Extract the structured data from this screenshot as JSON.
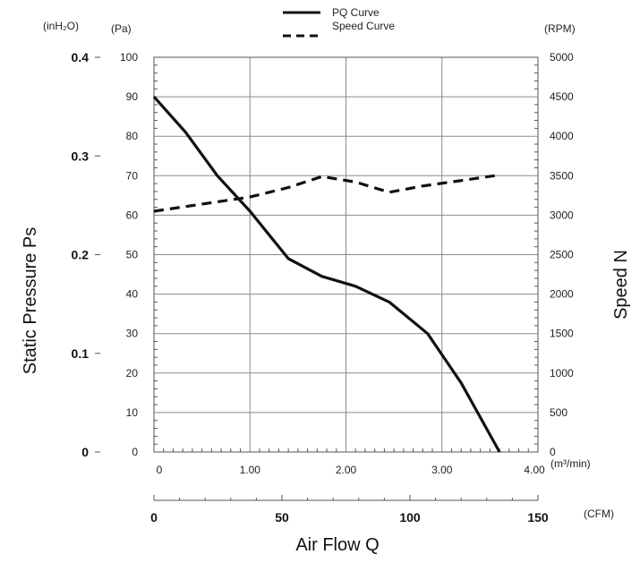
{
  "chart_data": {
    "type": "line",
    "legend": {
      "placement": "top-center",
      "entries": [
        {
          "label": "PQ Curve",
          "style": "solid"
        },
        {
          "label": "Speed Curve",
          "style": "dashed"
        }
      ]
    },
    "units": {
      "inh2o": "(inH₂O)",
      "pa": "(Pa)",
      "rpm": "(RPM)",
      "m3min": "(m³/min)",
      "cfm": "(CFM)"
    },
    "axes": {
      "x_m3min": {
        "label": "Air Flow Q",
        "range": [
          0,
          4
        ],
        "ticks": [
          "0",
          "1.00",
          "2.00",
          "3.00",
          "4.00"
        ]
      },
      "x_cfm": {
        "range": [
          0,
          150
        ],
        "ticks": [
          "0",
          "50",
          "100",
          "150"
        ]
      },
      "y_pa": {
        "range": [
          0,
          100
        ],
        "ticks": [
          "0",
          "10",
          "20",
          "30",
          "40",
          "50",
          "60",
          "70",
          "80",
          "90",
          "100"
        ]
      },
      "y_inh2o": {
        "label": "Static Pressure Ps",
        "range": [
          0,
          0.4
        ],
        "ticks": [
          "0",
          "0.1",
          "0.2",
          "0.3",
          "0.4"
        ]
      },
      "y_rpm": {
        "label": "Speed N",
        "range": [
          0,
          5000
        ],
        "ticks": [
          "0",
          "500",
          "1000",
          "1500",
          "2000",
          "2500",
          "3000",
          "3500",
          "4000",
          "4500",
          "5000"
        ]
      }
    },
    "grid": true,
    "series": [
      {
        "name": "PQ Curve",
        "axis": "y_pa",
        "style": "solid",
        "x": [
          0,
          0.33,
          0.66,
          1.0,
          1.4,
          1.75,
          2.1,
          2.45,
          2.85,
          3.2,
          3.6
        ],
        "y": [
          90,
          81,
          70,
          61,
          49,
          44.5,
          42,
          38,
          30,
          17.5,
          0
        ]
      },
      {
        "name": "Speed Curve",
        "axis": "y_rpm",
        "style": "dashed",
        "x": [
          0,
          1.0,
          1.4,
          1.75,
          2.1,
          2.45,
          2.8,
          3.15,
          3.55
        ],
        "y": [
          3050,
          3230,
          3350,
          3490,
          3420,
          3290,
          3370,
          3430,
          3500
        ]
      }
    ]
  }
}
